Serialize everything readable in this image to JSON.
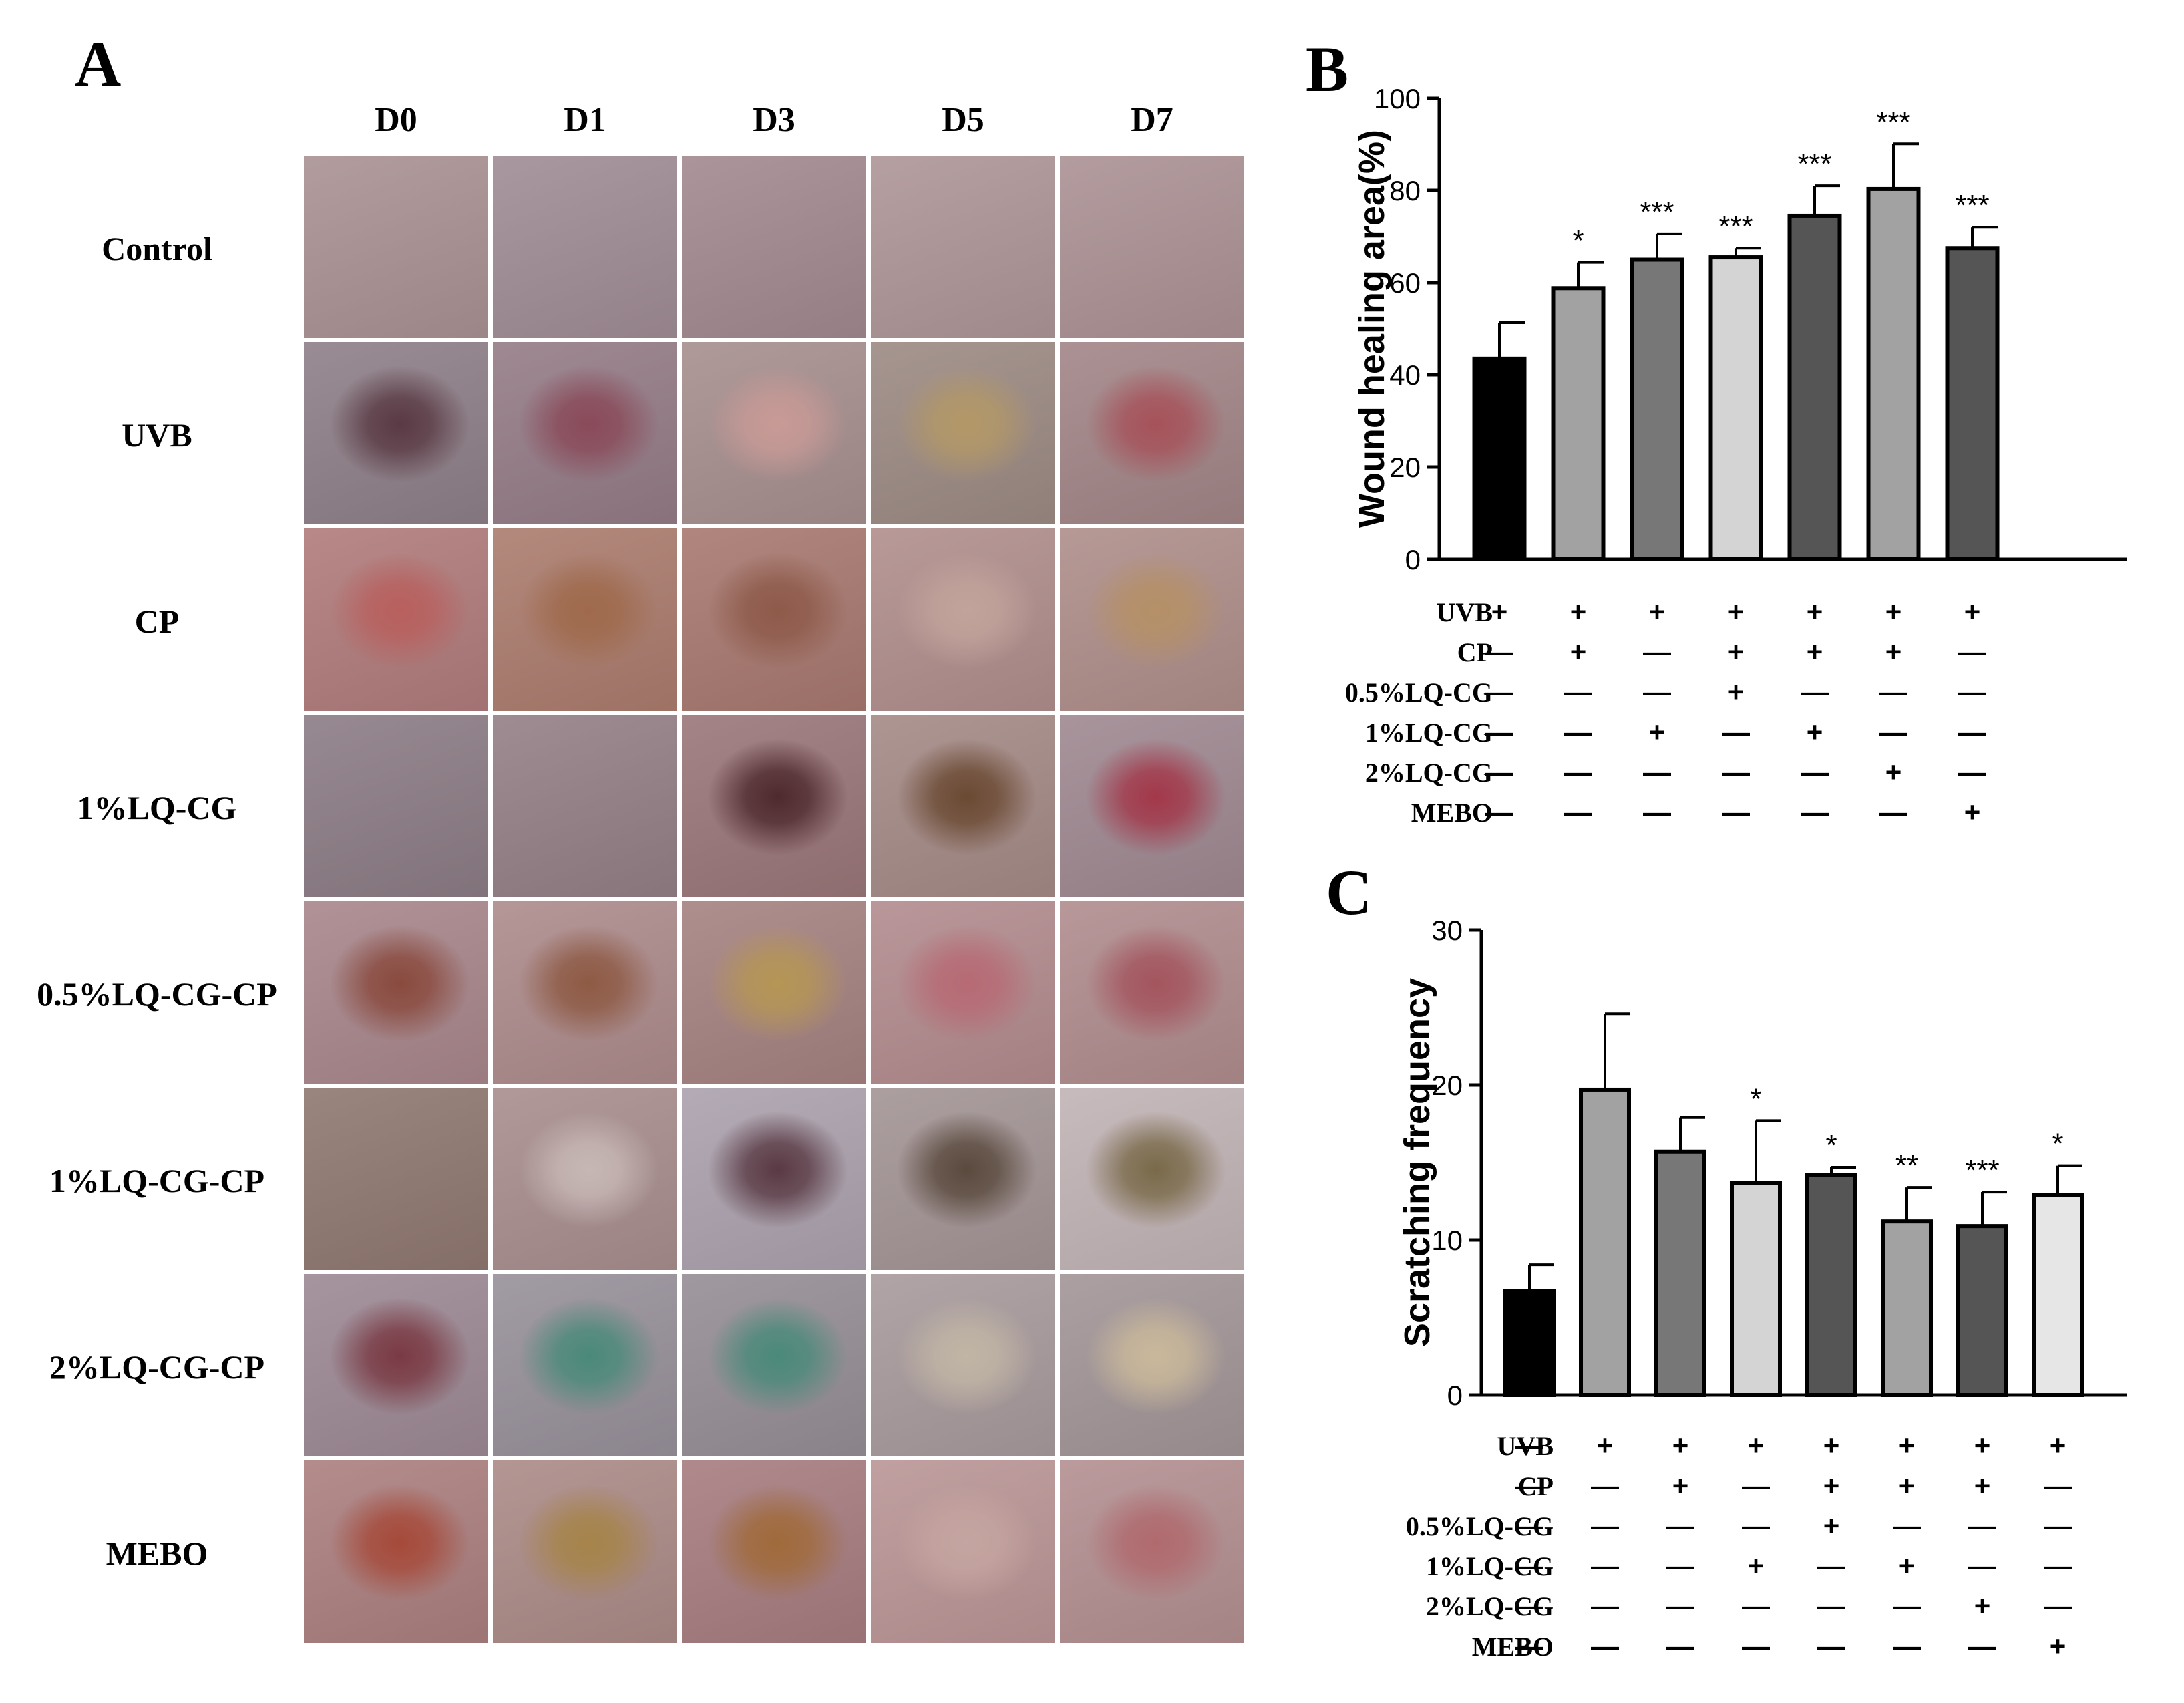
{
  "panel_labels": {
    "a": "A",
    "b": "B",
    "c": "C"
  },
  "photo_grid": {
    "days": [
      "D0",
      "D1",
      "D3",
      "D5",
      "D7"
    ],
    "groups": [
      "Control",
      "UVB",
      "CP",
      "1%LQ-CG",
      "0.5%LQ-CG-CP",
      "1%LQ-CG-CP",
      "2%LQ-CG-CP",
      "MEBO"
    ]
  },
  "chart_data": [
    {
      "type": "bar",
      "ylabel": "Wound healing area(%)",
      "ylim": [
        0,
        100
      ],
      "yticks": [
        0,
        20,
        40,
        60,
        80,
        100
      ],
      "values": [
        43.5,
        58.8,
        65.0,
        65.5,
        74.5,
        80.3,
        67.5
      ],
      "errors": [
        7.8,
        5.6,
        5.6,
        2.0,
        6.5,
        9.8,
        4.5
      ],
      "significance": [
        "",
        "*",
        "***",
        "***",
        "***",
        "***",
        "***"
      ],
      "bar_colors": [
        "#000000",
        "#a2a2a2",
        "#777777",
        "#d4d4d4",
        "#555555",
        "#a2a2a2",
        "#555555"
      ],
      "treatment_rows": [
        {
          "label": "UVB",
          "marks": [
            "+",
            "+",
            "+",
            "+",
            "+",
            "+",
            "+"
          ]
        },
        {
          "label": "CP",
          "marks": [
            "—",
            "+",
            "—",
            "+",
            "+",
            "+",
            "—"
          ]
        },
        {
          "label": "0.5%LQ-CG",
          "marks": [
            "—",
            "—",
            "—",
            "+",
            "—",
            "—",
            "—"
          ]
        },
        {
          "label": "1%LQ-CG",
          "marks": [
            "—",
            "—",
            "+",
            "—",
            "+",
            "—",
            "—"
          ]
        },
        {
          "label": "2%LQ-CG",
          "marks": [
            "—",
            "—",
            "—",
            "—",
            "—",
            "+",
            "—"
          ]
        },
        {
          "label": "MEBO",
          "marks": [
            "—",
            "—",
            "—",
            "—",
            "—",
            "—",
            "+"
          ]
        }
      ]
    },
    {
      "type": "bar",
      "ylabel": "Scratching frequency",
      "ylim": [
        0,
        30
      ],
      "yticks": [
        0,
        10,
        20,
        30
      ],
      "values": [
        6.7,
        19.7,
        15.7,
        13.7,
        14.2,
        11.2,
        10.9,
        12.9
      ],
      "errors": [
        1.7,
        4.9,
        2.2,
        4.0,
        0.5,
        2.2,
        2.2,
        1.9
      ],
      "significance": [
        "",
        "",
        "",
        "*",
        "*",
        "**",
        "***",
        "*"
      ],
      "bar_colors": [
        "#000000",
        "#a2a2a2",
        "#777777",
        "#d4d4d4",
        "#555555",
        "#a2a2a2",
        "#555555",
        "#e6e6e6"
      ],
      "treatment_rows": [
        {
          "label": "UVB",
          "marks": [
            "—",
            "+",
            "+",
            "+",
            "+",
            "+",
            "+",
            "+"
          ]
        },
        {
          "label": "CP",
          "marks": [
            "—",
            "—",
            "+",
            "—",
            "+",
            "+",
            "+",
            "—"
          ]
        },
        {
          "label": "0.5%LQ-CG",
          "marks": [
            "—",
            "—",
            "—",
            "—",
            "+",
            "—",
            "—",
            "—"
          ]
        },
        {
          "label": "1%LQ-CG",
          "marks": [
            "—",
            "—",
            "—",
            "+",
            "—",
            "+",
            "—",
            "—"
          ]
        },
        {
          "label": "2%LQ-CG",
          "marks": [
            "—",
            "—",
            "—",
            "—",
            "—",
            "—",
            "+",
            "—"
          ]
        },
        {
          "label": "MEBO",
          "marks": [
            "—",
            "—",
            "—",
            "—",
            "—",
            "—",
            "—",
            "+"
          ]
        }
      ]
    }
  ]
}
